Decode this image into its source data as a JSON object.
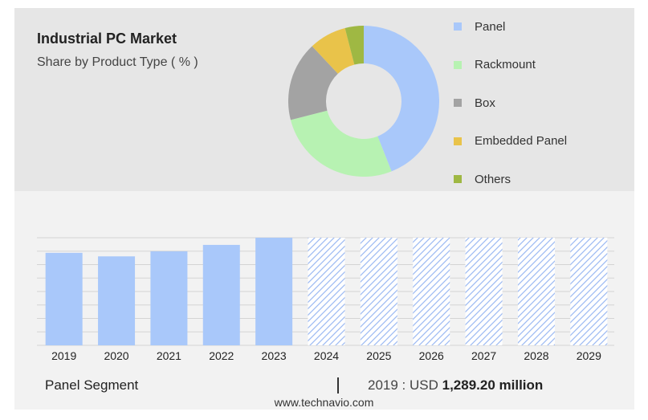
{
  "title": "Industrial PC Market",
  "subtitle": "Share by Product Type ( % )",
  "chart_data": [
    {
      "type": "pie",
      "variant": "donut",
      "categories": [
        "Panel",
        "Rackmount",
        "Box",
        "Embedded Panel",
        "Others"
      ],
      "values": [
        44,
        27,
        17,
        8,
        4
      ],
      "colors": [
        "#a9c8fa",
        "#b7f2b2",
        "#a3a3a3",
        "#e9c34a",
        "#9fb843"
      ],
      "legend_position": "right"
    },
    {
      "type": "bar",
      "categories": [
        "2019",
        "2020",
        "2021",
        "2022",
        "2023",
        "2024",
        "2025",
        "2026",
        "2027",
        "2028",
        "2029"
      ],
      "values": [
        1289.2,
        1240,
        1310,
        1400,
        1500,
        null,
        null,
        null,
        null,
        null,
        null
      ],
      "forecast_categories": [
        "2024",
        "2025",
        "2026",
        "2027",
        "2028",
        "2029"
      ],
      "color": "#a9c8fa",
      "forecast_style": "hatched",
      "ylim": [
        0,
        1500
      ],
      "grid": true
    }
  ],
  "footer": {
    "segment_label": "Panel Segment",
    "divider": "|",
    "year_prefix": "2019 : USD ",
    "year_value": "1,289.20 million"
  },
  "source": "www.technavio.com"
}
